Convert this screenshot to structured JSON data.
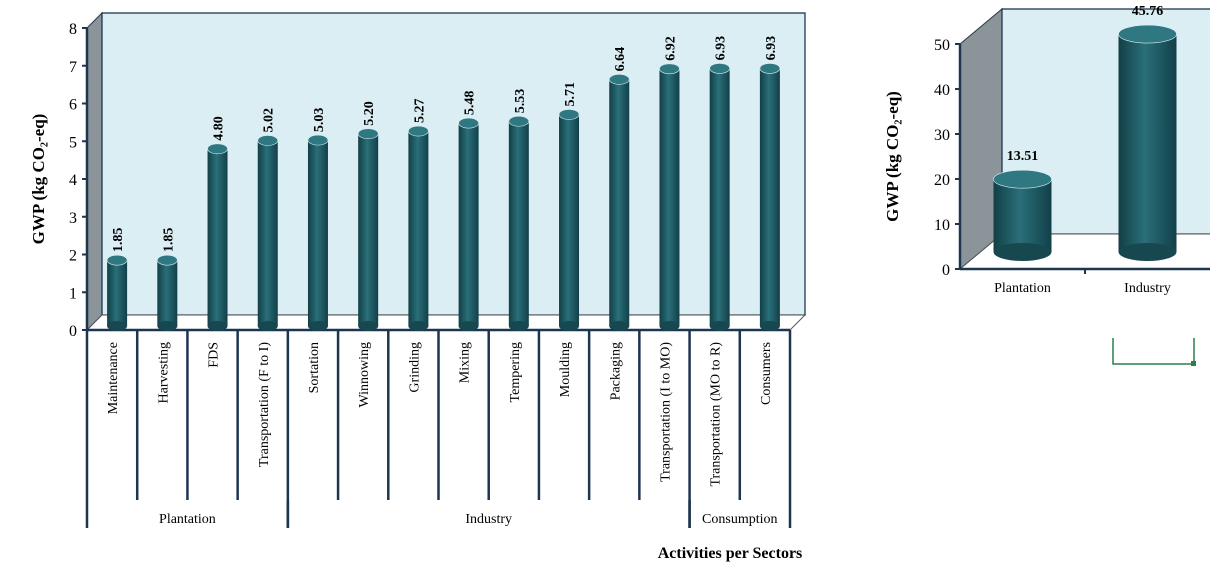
{
  "chart_data": [
    {
      "type": "bar",
      "title": "",
      "ylabel": "GWP (kg CO₂-eq)",
      "xlabel": "Activities per Sectors",
      "ylim": [
        0,
        8
      ],
      "yticks": [
        0,
        1,
        2,
        3,
        4,
        5,
        6,
        7,
        8
      ],
      "style": "3d-cylinder",
      "bar_color": "#1f5a63",
      "wall_color": "#dbeef4",
      "side_wall_color": "#8b9499",
      "categories": [
        "Maintenance",
        "Harvesting",
        "FDS",
        "Transportation (F to I)",
        "Sortation",
        "Winnowing",
        "Grinding",
        "Mixing",
        "Tempering",
        "Moulding",
        "Packaging",
        "Transportation (I to MO)",
        "Transportation (MO to R)",
        "Consumers"
      ],
      "values": [
        1.85,
        1.85,
        4.8,
        5.02,
        5.03,
        5.2,
        5.27,
        5.48,
        5.53,
        5.71,
        6.64,
        6.92,
        6.93,
        6.93
      ],
      "data_labels": [
        "1.85",
        "1.85",
        "4.80",
        "5.02",
        "5.03",
        "5.20",
        "5.27",
        "5.48",
        "5.53",
        "5.71",
        "6.64",
        "6.92",
        "6.93",
        "6.93"
      ],
      "groups": [
        {
          "name": "Plantation",
          "count": 4
        },
        {
          "name": "Industry",
          "count": 8
        },
        {
          "name": "Consumption",
          "count": 2
        }
      ]
    },
    {
      "type": "bar",
      "title": "",
      "ylabel": "GWP (kg CO₂-eq)",
      "xlabel": "",
      "ylim": [
        0,
        50
      ],
      "yticks": [
        0,
        10,
        20,
        30,
        40,
        50
      ],
      "style": "3d-cylinder",
      "bar_color": "#1f5a63",
      "wall_color": "#dbeef4",
      "side_wall_color": "#8b9499",
      "categories": [
        "Plantation",
        "Industry"
      ],
      "values": [
        13.51,
        45.76
      ],
      "data_labels": [
        "13.51",
        "45.76"
      ]
    }
  ]
}
